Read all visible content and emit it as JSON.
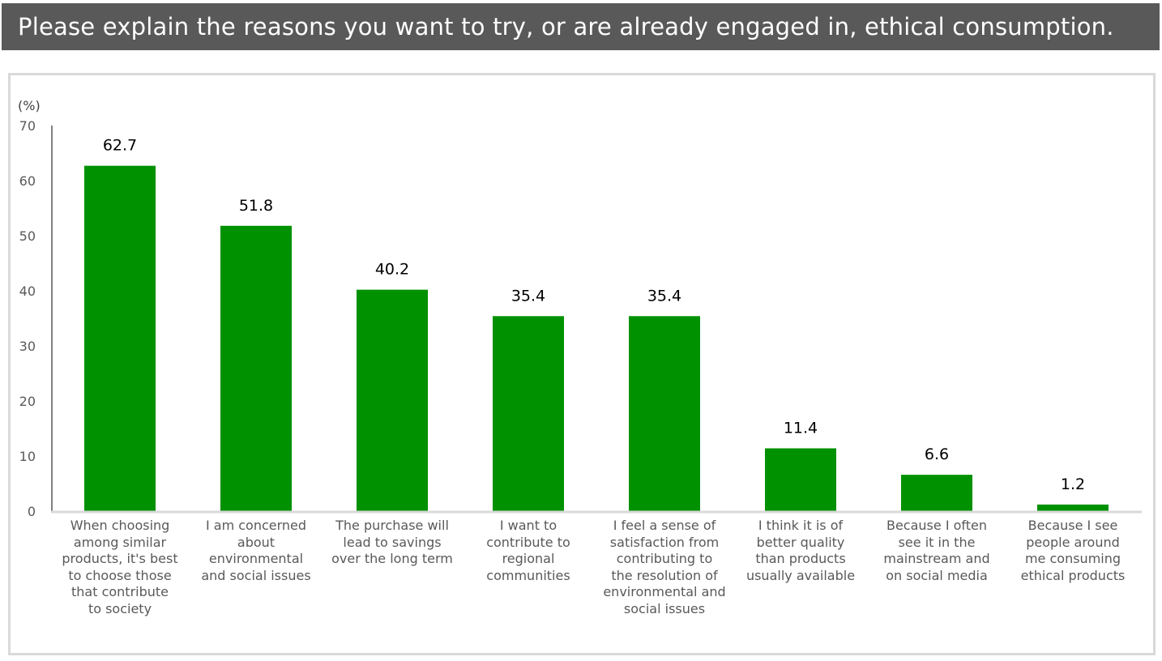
{
  "header": {
    "title": "Please explain the reasons you want to try, or are already engaged in, ethical consumption."
  },
  "colors": {
    "title_bg": "#595959",
    "bar": "#009100",
    "axis": "#808080",
    "baseline": "#d9d9d9"
  },
  "chart_data": {
    "type": "bar",
    "title": "Please explain the reasons you want to try, or are already engaged in, ethical consumption.",
    "xlabel": "",
    "ylabel": "(%)",
    "ylim": [
      0,
      70
    ],
    "yticks": [
      0,
      10,
      20,
      30,
      40,
      50,
      60,
      70
    ],
    "grid": false,
    "legend": "none",
    "categories": [
      "When choosing among similar products, it's best to choose those that contribute to society",
      "I am concerned about environmental and social issues",
      "The purchase will lead to savings over the long term",
      "I want to contribute to regional communities",
      "I feel a sense of satisfaction from contributing to the resolution of environmental and social issues",
      "I think it is of better quality than products usually available",
      "Because I often see it in the mainstream and on social media",
      "Because I see people around me consuming ethical products"
    ],
    "category_lines": [
      [
        "When choosing",
        "among similar",
        "products, it's best",
        "to choose those",
        "that contribute",
        "to society"
      ],
      [
        "I am concerned",
        "about",
        "environmental",
        "and social issues"
      ],
      [
        "The purchase will",
        "lead to savings",
        "over the long term"
      ],
      [
        "I want to",
        "contribute to",
        "regional",
        "communities"
      ],
      [
        "I feel a sense of",
        "satisfaction from",
        "contributing to",
        "the resolution of",
        "environmental and",
        "social issues"
      ],
      [
        "I think it is of",
        "better quality",
        "than products",
        "usually available"
      ],
      [
        "Because I often",
        "see it in the",
        "mainstream and",
        "on social media"
      ],
      [
        "Because I see",
        "people around",
        "me consuming",
        "ethical products"
      ]
    ],
    "values": [
      62.7,
      51.8,
      40.2,
      35.4,
      35.4,
      11.4,
      6.6,
      1.2
    ],
    "data_labels": [
      "62.7",
      "51.8",
      "40.2",
      "35.4",
      "35.4",
      "11.4",
      "6.6",
      "1.2"
    ]
  }
}
